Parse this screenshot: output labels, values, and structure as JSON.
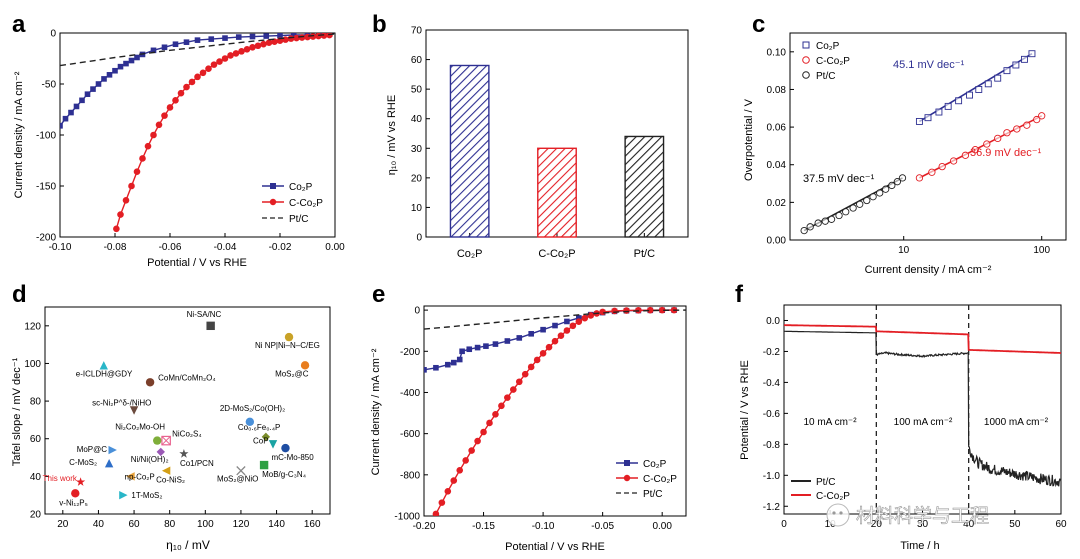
{
  "colors": {
    "co2p": "#2e3092",
    "cco2p": "#e31e24",
    "ptc": "#222222"
  },
  "watermark": "材料科学与工程",
  "chart_data": [
    {
      "panel": "a",
      "type": "line",
      "xlabel": "Potential / V vs RHE",
      "ylabel": "Current density / mA cm⁻²",
      "xlim": [
        -0.1,
        0.0
      ],
      "ylim": [
        -200,
        0
      ],
      "xticks": [
        -0.1,
        -0.08,
        -0.06,
        -0.04,
        -0.02,
        0.0
      ],
      "xtick_labels": [
        "-0.10",
        "-0.08",
        "-0.06",
        "-0.04",
        "-0.02",
        "0.00"
      ],
      "yticks": [
        -200,
        -150,
        -100,
        -50,
        0
      ],
      "ytick_labels": [
        "-200",
        "-150",
        "-100",
        "-50",
        "0"
      ],
      "legend": "bottom-right",
      "series": [
        {
          "name": "Co₂P",
          "style": "line-square",
          "color": "#2e3092",
          "x": [
            -0.1,
            -0.098,
            -0.096,
            -0.094,
            -0.092,
            -0.09,
            -0.088,
            -0.086,
            -0.084,
            -0.082,
            -0.08,
            -0.078,
            -0.076,
            -0.074,
            -0.072,
            -0.07,
            -0.066,
            -0.062,
            -0.058,
            -0.054,
            -0.05,
            -0.045,
            -0.04,
            -0.035,
            -0.03,
            -0.025,
            -0.02,
            -0.015,
            -0.01,
            -0.005,
            -0.002
          ],
          "y": [
            -91,
            -84,
            -78,
            -72,
            -66,
            -60,
            -55,
            -50,
            -45,
            -41,
            -37,
            -33,
            -30,
            -27,
            -24,
            -21,
            -17,
            -14,
            -11,
            -9,
            -7,
            -6,
            -5,
            -4,
            -3.5,
            -3,
            -2.5,
            -2,
            -2,
            -1.5,
            -1
          ]
        },
        {
          "name": "C-Co₂P",
          "style": "line-circle",
          "color": "#e31e24",
          "x": [
            -0.0795,
            -0.078,
            -0.076,
            -0.074,
            -0.072,
            -0.07,
            -0.068,
            -0.066,
            -0.064,
            -0.062,
            -0.06,
            -0.058,
            -0.056,
            -0.054,
            -0.052,
            -0.05,
            -0.048,
            -0.046,
            -0.044,
            -0.042,
            -0.04,
            -0.038,
            -0.036,
            -0.034,
            -0.032,
            -0.03,
            -0.028,
            -0.026,
            -0.024,
            -0.022,
            -0.02,
            -0.018,
            -0.016,
            -0.014,
            -0.012,
            -0.01,
            -0.008,
            -0.006,
            -0.004,
            -0.002
          ],
          "y": [
            -192,
            -178,
            -164,
            -150,
            -136,
            -123,
            -111,
            -100,
            -90,
            -81,
            -73,
            -66,
            -59,
            -53,
            -48,
            -43,
            -39,
            -35,
            -31,
            -28,
            -25,
            -22,
            -20,
            -18,
            -16,
            -14,
            -12.5,
            -11,
            -9.5,
            -8.5,
            -7.5,
            -6.5,
            -5.5,
            -5,
            -4.5,
            -4,
            -3.5,
            -3,
            -2.5,
            -2
          ]
        },
        {
          "name": "Pt/C",
          "style": "dash",
          "color": "#222222",
          "x": [
            -0.1,
            -0.09,
            -0.08,
            -0.07,
            -0.06,
            -0.05,
            -0.04,
            -0.03,
            -0.02,
            -0.01,
            0.0
          ],
          "y": [
            -32,
            -28,
            -24,
            -20.5,
            -17,
            -14,
            -11,
            -8,
            -5.5,
            -3,
            -1
          ]
        }
      ]
    },
    {
      "panel": "b",
      "type": "bar",
      "ylabel": "η₁₀ / mV vs RHE",
      "ylim": [
        0,
        70
      ],
      "yticks": [
        0,
        10,
        20,
        30,
        40,
        50,
        60,
        70
      ],
      "ytick_labels": [
        "0",
        "10",
        "20",
        "30",
        "40",
        "50",
        "60",
        "70"
      ],
      "categories": [
        "Co₂P",
        "C-Co₂P",
        "Pt/C"
      ],
      "values": [
        58,
        30,
        34
      ],
      "bar_colors": [
        "#2e3092",
        "#e31e24",
        "#222222"
      ]
    },
    {
      "panel": "c",
      "type": "scatter",
      "xlabel": "Current density / mA cm⁻²",
      "ylabel": "Overpotential / V",
      "xscale": "log",
      "xlim": [
        1.5,
        150
      ],
      "ylim": [
        0,
        0.11
      ],
      "xticks": [
        10,
        100
      ],
      "xtick_labels": [
        "10",
        "100"
      ],
      "yticks": [
        0,
        0.02,
        0.04,
        0.06,
        0.08,
        0.1
      ],
      "ytick_labels": [
        "0.00",
        "0.02",
        "0.04",
        "0.06",
        "0.08",
        "0.10"
      ],
      "legend": "top-left",
      "annotations": [
        "45.1 mV dec⁻¹",
        "36.9 mV dec⁻¹",
        "37.5 mV dec⁻¹"
      ],
      "series": [
        {
          "name": "Co₂P",
          "marker": "square",
          "color": "#2e3092",
          "x": [
            13,
            15,
            18,
            21,
            25,
            30,
            35,
            41,
            48,
            56,
            65,
            75,
            85
          ],
          "y": [
            0.063,
            0.065,
            0.068,
            0.071,
            0.074,
            0.077,
            0.08,
            0.083,
            0.086,
            0.09,
            0.093,
            0.096,
            0.099
          ]
        },
        {
          "name": "C-Co₂P",
          "marker": "circle",
          "color": "#e31e24",
          "x": [
            13,
            16,
            19,
            23,
            28,
            33,
            40,
            48,
            56,
            66,
            78,
            92,
            100
          ],
          "y": [
            0.033,
            0.036,
            0.039,
            0.042,
            0.045,
            0.048,
            0.051,
            0.054,
            0.057,
            0.059,
            0.061,
            0.064,
            0.066
          ]
        },
        {
          "name": "Pt/C",
          "marker": "circle",
          "color": "#222222",
          "x": [
            1.9,
            2.1,
            2.4,
            2.7,
            3.0,
            3.4,
            3.8,
            4.3,
            4.8,
            5.4,
            6.0,
            6.7,
            7.4,
            8.2,
            9.0,
            9.8
          ],
          "y": [
            0.005,
            0.007,
            0.009,
            0.01,
            0.011,
            0.013,
            0.015,
            0.017,
            0.019,
            0.021,
            0.023,
            0.025,
            0.027,
            0.029,
            0.031,
            0.033
          ]
        }
      ]
    },
    {
      "panel": "d",
      "type": "scatter",
      "xlabel": "η₁₀ / mV",
      "ylabel": "Tafel slope / mV dec⁻¹",
      "xlim": [
        10,
        170
      ],
      "ylim": [
        20,
        130
      ],
      "xticks": [
        20,
        40,
        60,
        80,
        100,
        120,
        140,
        160
      ],
      "xtick_labels": [
        "20",
        "40",
        "60",
        "80",
        "100",
        "120",
        "140",
        "160"
      ],
      "yticks": [
        20,
        40,
        60,
        80,
        100,
        120
      ],
      "ytick_labels": [
        "20",
        "40",
        "60",
        "80",
        "100",
        "120"
      ],
      "points": [
        {
          "label": "Ni-SA/NC",
          "x": 103,
          "y": 120,
          "color": "#444444",
          "marker": "square"
        },
        {
          "label": "Ni NP|Ni–N–C/EG",
          "x": 147,
          "y": 114,
          "color": "#c9a227",
          "marker": "circle"
        },
        {
          "label": "MoS₂@C",
          "x": 156,
          "y": 99,
          "color": "#e87d1e",
          "marker": "circle"
        },
        {
          "label": "e-ICLDH@GDY",
          "x": 43,
          "y": 99,
          "color": "#29b6c8",
          "marker": "triangle"
        },
        {
          "label": "CoMn/CoMn₂O₄",
          "x": 69,
          "y": 90,
          "color": "#7b3f2b",
          "marker": "circle"
        },
        {
          "label": "sc-Ni₂P^δ-/NiHO",
          "x": 60,
          "y": 75,
          "color": "#6b4b3e",
          "marker": "triangle-down"
        },
        {
          "label": "2D-MoS₂/Co(OH)₂",
          "x": 125,
          "y": 69,
          "color": "#4a90d9",
          "marker": "circle"
        },
        {
          "label": "Co₀.₆Fe₀.₄P",
          "x": 134,
          "y": 61,
          "color": "#7a8c2a",
          "marker": "diamond"
        },
        {
          "label": "Ni₂Co₂Mo-OH",
          "x": 73,
          "y": 59,
          "color": "#7fae3a",
          "marker": "circle"
        },
        {
          "label": "NiCo₂S₄",
          "x": 78,
          "y": 59,
          "color": "#e8638f",
          "marker": "cross"
        },
        {
          "label": "MoP@C",
          "x": 48,
          "y": 54,
          "color": "#4a90d9",
          "marker": "triangle-right"
        },
        {
          "label": "CoP",
          "x": 138,
          "y": 57,
          "color": "#1aa3a3",
          "marker": "triangle-down"
        },
        {
          "label": "mC-Mo-850",
          "x": 145,
          "y": 55,
          "color": "#1f4ea3",
          "marker": "circle"
        },
        {
          "label": "Ni/Ni(OH)₂",
          "x": 75,
          "y": 53,
          "color": "#9b59b6",
          "marker": "diamond"
        },
        {
          "label": "Co1/PCN",
          "x": 88,
          "y": 52,
          "color": "#555555",
          "marker": "star"
        },
        {
          "label": "C-MoS₂",
          "x": 46,
          "y": 47,
          "color": "#2e6ec8",
          "marker": "triangle"
        },
        {
          "label": "Co-NiS₂",
          "x": 78,
          "y": 43,
          "color": "#d4a017",
          "marker": "triangle-left"
        },
        {
          "label": "MoB/g-C₃N₄",
          "x": 133,
          "y": 46,
          "color": "#2ea043",
          "marker": "square"
        },
        {
          "label": "MoS₂@NiO",
          "x": 120,
          "y": 43,
          "color": "#888888",
          "marker": "x"
        },
        {
          "label": "This work",
          "x": 30,
          "y": 37,
          "color": "#e31e24",
          "marker": "star"
        },
        {
          "label": "np-Co₂P",
          "x": 58,
          "y": 40,
          "color": "#e8a23a",
          "marker": "triangle-left"
        },
        {
          "label": "v-Ni₁₂P₅",
          "x": 27,
          "y": 31,
          "color": "#e31e24",
          "marker": "circle"
        },
        {
          "label": "1T-MoS₂",
          "x": 54,
          "y": 30,
          "color": "#29b6c8",
          "marker": "triangle-right"
        }
      ]
    },
    {
      "panel": "e",
      "type": "line",
      "xlabel": "Potential / V vs RHE",
      "ylabel": "Current density / mA cm⁻²",
      "xlim": [
        -0.2,
        0.02
      ],
      "ylim": [
        -1000,
        20
      ],
      "xticks": [
        -0.2,
        -0.15,
        -0.1,
        -0.05,
        0.0
      ],
      "xtick_labels": [
        "-0.20",
        "-0.15",
        "-0.10",
        "-0.05",
        "0.00"
      ],
      "yticks": [
        -1000,
        -800,
        -600,
        -400,
        -200,
        0
      ],
      "ytick_labels": [
        "-1000",
        "-800",
        "-600",
        "-400",
        "-200",
        "0"
      ],
      "legend": "bottom-right",
      "series": [
        {
          "name": "Co₂P",
          "style": "line-square",
          "color": "#2e3092",
          "x": [
            -0.2,
            -0.19,
            -0.18,
            -0.175,
            -0.17,
            -0.168,
            -0.162,
            -0.155,
            -0.148,
            -0.14,
            -0.13,
            -0.12,
            -0.11,
            -0.1,
            -0.09,
            -0.08,
            -0.07,
            -0.06,
            -0.05,
            -0.04,
            -0.03,
            -0.02,
            -0.01,
            0.0,
            0.01
          ],
          "y": [
            -290,
            -280,
            -265,
            -255,
            -240,
            -200,
            -190,
            -182,
            -175,
            -165,
            -150,
            -135,
            -115,
            -95,
            -75,
            -55,
            -38,
            -22,
            -12,
            -6,
            -3,
            -2,
            -1,
            -0.5,
            0
          ]
        },
        {
          "name": "C-Co₂P",
          "style": "line-circle",
          "color": "#e31e24",
          "x": [
            -0.19,
            -0.185,
            -0.18,
            -0.175,
            -0.17,
            -0.165,
            -0.16,
            -0.155,
            -0.15,
            -0.145,
            -0.14,
            -0.135,
            -0.13,
            -0.125,
            -0.12,
            -0.115,
            -0.11,
            -0.105,
            -0.1,
            -0.095,
            -0.09,
            -0.085,
            -0.08,
            -0.075,
            -0.07,
            -0.065,
            -0.06,
            -0.055,
            -0.05,
            -0.04,
            -0.03,
            -0.02,
            -0.01,
            0.0,
            0.01
          ],
          "y": [
            -990,
            -935,
            -880,
            -828,
            -778,
            -730,
            -682,
            -636,
            -592,
            -548,
            -506,
            -465,
            -425,
            -386,
            -348,
            -311,
            -276,
            -242,
            -210,
            -180,
            -151,
            -124,
            -99,
            -76,
            -56,
            -39,
            -26,
            -16,
            -9,
            -4,
            -2,
            -1,
            -0.5,
            0,
            0
          ]
        },
        {
          "name": "Pt/C",
          "style": "dash",
          "color": "#222222",
          "x": [
            -0.2,
            -0.18,
            -0.16,
            -0.14,
            -0.12,
            -0.1,
            -0.08,
            -0.06,
            -0.04,
            -0.02,
            0.0,
            0.02
          ],
          "y": [
            -92,
            -82,
            -71,
            -60,
            -49,
            -38,
            -28,
            -18,
            -10,
            -4,
            -1,
            0
          ]
        }
      ]
    },
    {
      "panel": "f",
      "type": "line",
      "xlabel": "Time / h",
      "ylabel": "Potential / V vs RHE",
      "xlim": [
        0,
        60
      ],
      "ylim": [
        -1.25,
        0.1
      ],
      "xticks": [
        0,
        10,
        20,
        30,
        40,
        50,
        60
      ],
      "xtick_labels": [
        "0",
        "10",
        "20",
        "30",
        "40",
        "50",
        "60"
      ],
      "yticks": [
        -1.2,
        -1.0,
        -0.8,
        -0.6,
        -0.4,
        -0.2,
        0.0
      ],
      "ytick_labels": [
        "-1.2",
        "-1.0",
        "-0.8",
        "-0.6",
        "-0.4",
        "-0.2",
        "0.0"
      ],
      "dividers": [
        20,
        40
      ],
      "regions": [
        "10 mA cm⁻²",
        "100 mA cm⁻²",
        "1000 mA cm⁻²"
      ],
      "legend": "bottom-left",
      "series": [
        {
          "name": "Pt/C",
          "color": "#222222",
          "x": [
            0,
            10,
            19.9,
            20,
            22,
            25,
            30,
            35,
            39.9,
            40,
            41,
            42,
            45,
            50,
            55,
            60
          ],
          "y": [
            -0.07,
            -0.075,
            -0.08,
            -0.22,
            -0.21,
            -0.22,
            -0.23,
            -0.22,
            -0.21,
            -0.82,
            -0.88,
            -0.92,
            -0.96,
            -0.99,
            -1.02,
            -1.04
          ]
        },
        {
          "name": "C-Co₂P",
          "color": "#e31e24",
          "x": [
            0,
            10,
            19.9,
            20,
            30,
            39.9,
            40,
            50,
            60
          ],
          "y": [
            -0.03,
            -0.035,
            -0.04,
            -0.07,
            -0.08,
            -0.09,
            -0.19,
            -0.2,
            -0.21
          ]
        }
      ]
    }
  ]
}
